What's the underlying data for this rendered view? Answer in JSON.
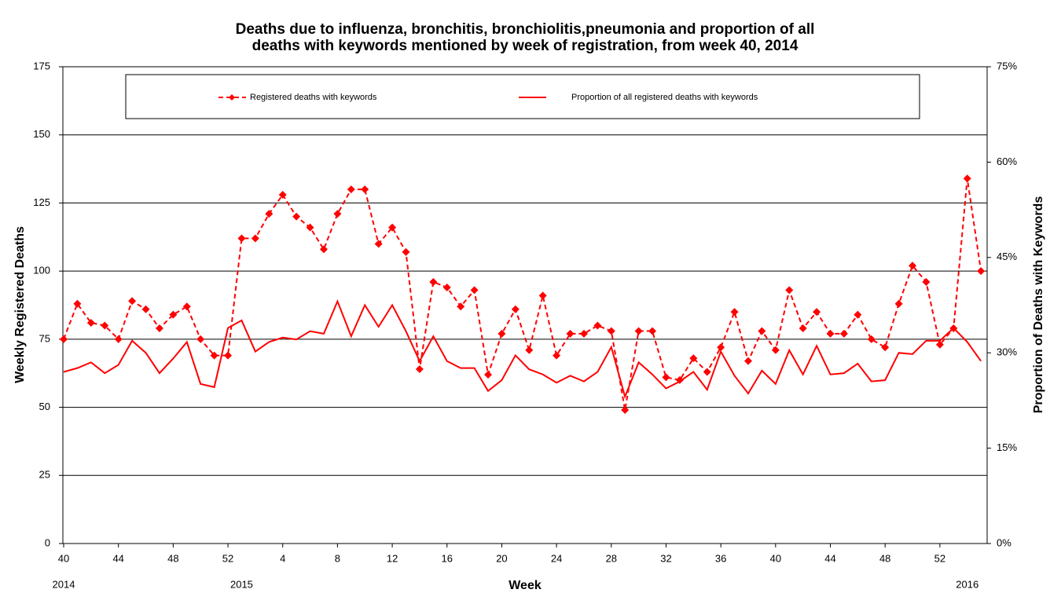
{
  "chart_data": {
    "type": "line",
    "title_lines": [
      "Deaths due to influenza, bronchitis, bronchiolitis,pneumonia and proportion of all",
      "deaths with keywords mentioned by week of registration, from week 40, 2014"
    ],
    "x_label": "Week",
    "y_label": "Weekly Registered Deaths",
    "y2_label": "Proportion of Deaths with Keywords",
    "categories": [
      "40",
      null,
      null,
      null,
      "44",
      null,
      null,
      null,
      "48",
      null,
      null,
      null,
      "52",
      null,
      null,
      null,
      "4",
      null,
      null,
      null,
      "8",
      null,
      null,
      null,
      "12",
      null,
      null,
      null,
      "16",
      null,
      null,
      null,
      "20",
      null,
      null,
      null,
      "24",
      null,
      null,
      null,
      "28",
      null,
      null,
      null,
      "32",
      null,
      null,
      null,
      "36",
      null,
      null,
      null,
      "40",
      null,
      null,
      null,
      "44",
      null,
      null,
      null,
      "48",
      null,
      null,
      null,
      "52",
      null,
      null,
      null
    ],
    "year_labels": [
      {
        "text": "2014",
        "category_index": 0
      },
      {
        "text": "2015",
        "category_index": 13
      },
      {
        "text": "2016",
        "category_index": 66
      }
    ],
    "ylim": [
      0,
      175
    ],
    "yticks": [
      0,
      25,
      50,
      75,
      100,
      125,
      150,
      175
    ],
    "y2lim": [
      0,
      75
    ],
    "y2ticks": [
      {
        "value": 0,
        "label": "0%"
      },
      {
        "value": 15,
        "label": "15%"
      },
      {
        "value": 30,
        "label": "30%"
      },
      {
        "value": 45,
        "label": "45%"
      },
      {
        "value": 60,
        "label": "60%"
      },
      {
        "value": 75,
        "label": "75%"
      }
    ],
    "grid": true,
    "legend": "top",
    "series": [
      {
        "name": "Registered deaths with keywords",
        "color": "#ff0000",
        "style": "dashed",
        "marker": "diamond",
        "values": [
          75,
          88,
          81,
          80,
          75,
          89,
          86,
          79,
          84,
          87,
          75,
          69,
          69,
          112,
          112,
          121,
          128,
          120,
          116,
          108,
          121,
          130,
          130,
          110,
          116,
          107,
          64,
          96,
          94,
          87,
          93,
          62,
          77,
          86,
          71,
          91,
          69,
          77,
          77,
          80,
          78,
          49,
          78,
          78,
          61,
          60,
          68,
          63,
          72,
          85,
          67,
          78,
          71,
          93,
          79,
          85,
          77,
          77,
          84,
          75,
          72,
          88,
          102,
          96,
          73,
          79,
          134,
          100
        ]
      },
      {
        "name": "Proportion of all registered deaths with keywords",
        "color": "#ff0000",
        "style": "solid",
        "axis": "y2",
        "values": [
          27.0,
          27.6,
          28.5,
          26.8,
          28.1,
          31.9,
          30.0,
          26.8,
          29.1,
          31.7,
          25.1,
          24.6,
          33.9,
          35.1,
          30.2,
          31.7,
          32.4,
          32.1,
          33.4,
          33.0,
          38.1,
          32.6,
          37.5,
          34.1,
          37.5,
          33.4,
          28.7,
          32.6,
          28.7,
          27.6,
          27.6,
          24.0,
          25.7,
          29.6,
          27.4,
          26.6,
          25.3,
          26.4,
          25.5,
          27.0,
          30.9,
          23.1,
          28.5,
          26.6,
          24.4,
          25.5,
          27.0,
          24.2,
          30.2,
          26.4,
          23.6,
          27.2,
          25.1,
          30.4,
          26.6,
          31.1,
          26.6,
          26.8,
          28.3,
          25.5,
          25.7,
          30.0,
          29.8,
          31.9,
          31.9,
          33.9,
          31.7,
          28.7
        ]
      }
    ]
  }
}
